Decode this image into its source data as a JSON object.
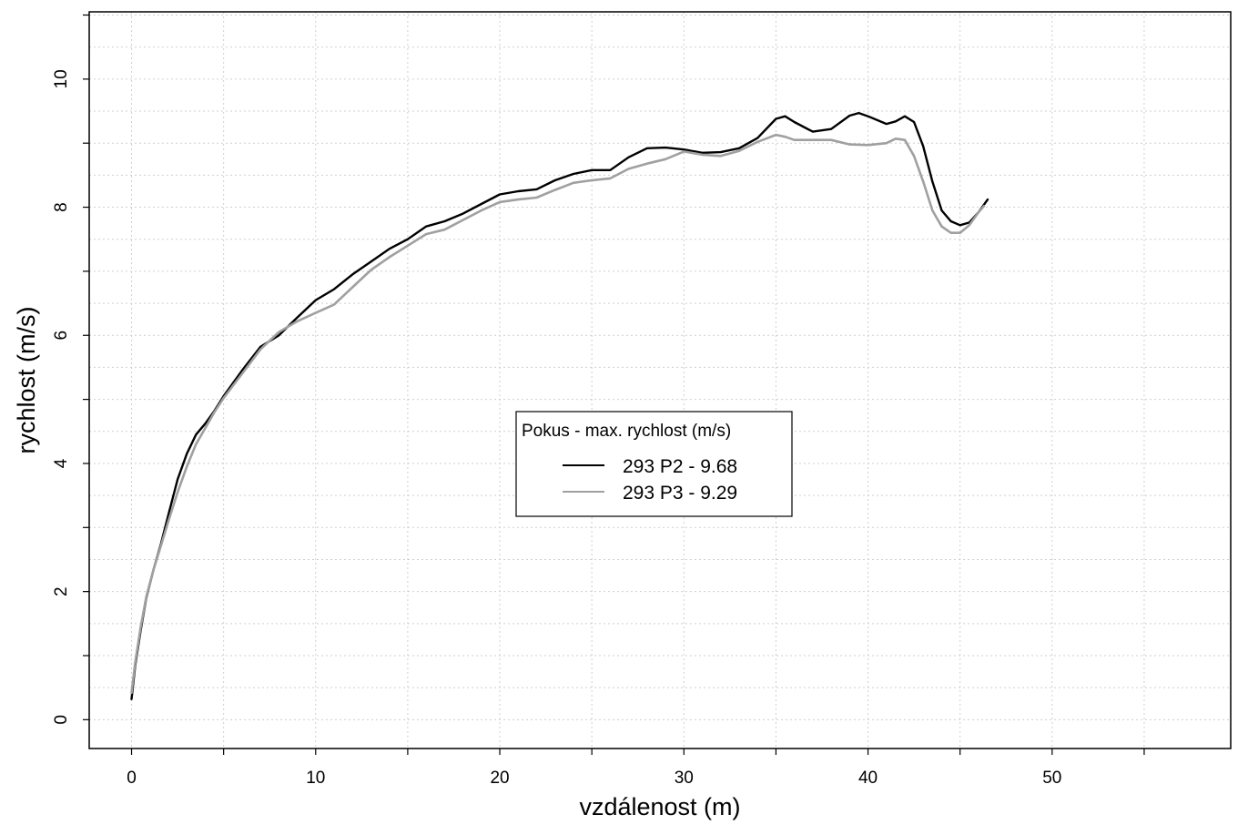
{
  "chart_data": {
    "type": "line",
    "xlabel": "vzdálenost (m)",
    "ylabel": "rychlost (m/s)",
    "xlim": [
      -2.3,
      59.7
    ],
    "ylim": [
      -0.45,
      11.05
    ],
    "x_ticks": [
      0,
      10,
      20,
      30,
      40,
      50
    ],
    "y_ticks": [
      0,
      2,
      4,
      6,
      8,
      10
    ],
    "x_tick_labels": [
      "0",
      "10",
      "20",
      "30",
      "40",
      "50"
    ],
    "y_tick_labels": [
      "0",
      "2",
      "4",
      "6",
      "8",
      "10"
    ],
    "grid": true,
    "legend": {
      "title": "Pokus - max. rychlost (m/s)",
      "placement": "center"
    },
    "series": [
      {
        "name": "293 P2 - 9.68",
        "color": "#000000",
        "points": [
          [
            0.0,
            0.32
          ],
          [
            0.2,
            0.85
          ],
          [
            0.5,
            1.4
          ],
          [
            0.8,
            1.9
          ],
          [
            1.2,
            2.35
          ],
          [
            1.6,
            2.75
          ],
          [
            2.0,
            3.2
          ],
          [
            2.5,
            3.75
          ],
          [
            3.0,
            4.15
          ],
          [
            3.5,
            4.45
          ],
          [
            4.0,
            4.62
          ],
          [
            4.5,
            4.82
          ],
          [
            5.0,
            5.05
          ],
          [
            6.0,
            5.45
          ],
          [
            7.0,
            5.82
          ],
          [
            8.0,
            6.0
          ],
          [
            9.0,
            6.28
          ],
          [
            10.0,
            6.55
          ],
          [
            11.0,
            6.72
          ],
          [
            12.0,
            6.95
          ],
          [
            13.0,
            7.15
          ],
          [
            14.0,
            7.35
          ],
          [
            15.0,
            7.5
          ],
          [
            16.0,
            7.7
          ],
          [
            17.0,
            7.78
          ],
          [
            18.0,
            7.9
          ],
          [
            19.0,
            8.05
          ],
          [
            20.0,
            8.2
          ],
          [
            21.0,
            8.25
          ],
          [
            22.0,
            8.28
          ],
          [
            23.0,
            8.42
          ],
          [
            24.0,
            8.52
          ],
          [
            25.0,
            8.58
          ],
          [
            26.0,
            8.58
          ],
          [
            27.0,
            8.78
          ],
          [
            28.0,
            8.92
          ],
          [
            29.0,
            8.93
          ],
          [
            30.0,
            8.9
          ],
          [
            31.0,
            8.85
          ],
          [
            32.0,
            8.86
          ],
          [
            33.0,
            8.92
          ],
          [
            34.0,
            9.08
          ],
          [
            35.0,
            9.38
          ],
          [
            35.5,
            9.42
          ],
          [
            36.0,
            9.33
          ],
          [
            37.0,
            9.18
          ],
          [
            38.0,
            9.22
          ],
          [
            39.0,
            9.43
          ],
          [
            39.5,
            9.47
          ],
          [
            40.0,
            9.42
          ],
          [
            41.0,
            9.3
          ],
          [
            41.5,
            9.34
          ],
          [
            42.0,
            9.42
          ],
          [
            42.5,
            9.33
          ],
          [
            43.0,
            8.95
          ],
          [
            43.5,
            8.4
          ],
          [
            44.0,
            7.95
          ],
          [
            44.5,
            7.78
          ],
          [
            45.0,
            7.72
          ],
          [
            45.5,
            7.76
          ],
          [
            46.0,
            7.92
          ],
          [
            46.5,
            8.12
          ]
        ]
      },
      {
        "name": "293 P3 - 9.29",
        "color": "#a0a0a0",
        "points": [
          [
            0.0,
            0.42
          ],
          [
            0.2,
            0.9
          ],
          [
            0.5,
            1.45
          ],
          [
            0.8,
            1.92
          ],
          [
            1.2,
            2.35
          ],
          [
            1.6,
            2.72
          ],
          [
            2.0,
            3.1
          ],
          [
            2.5,
            3.55
          ],
          [
            3.0,
            3.95
          ],
          [
            3.5,
            4.3
          ],
          [
            4.0,
            4.55
          ],
          [
            4.5,
            4.8
          ],
          [
            5.0,
            5.02
          ],
          [
            6.0,
            5.4
          ],
          [
            7.0,
            5.78
          ],
          [
            8.0,
            6.05
          ],
          [
            9.0,
            6.22
          ],
          [
            10.0,
            6.35
          ],
          [
            11.0,
            6.48
          ],
          [
            12.0,
            6.75
          ],
          [
            13.0,
            7.02
          ],
          [
            14.0,
            7.22
          ],
          [
            15.0,
            7.4
          ],
          [
            16.0,
            7.58
          ],
          [
            17.0,
            7.65
          ],
          [
            18.0,
            7.8
          ],
          [
            19.0,
            7.95
          ],
          [
            20.0,
            8.08
          ],
          [
            21.0,
            8.12
          ],
          [
            22.0,
            8.15
          ],
          [
            23.0,
            8.27
          ],
          [
            24.0,
            8.38
          ],
          [
            25.0,
            8.42
          ],
          [
            26.0,
            8.45
          ],
          [
            27.0,
            8.6
          ],
          [
            28.0,
            8.68
          ],
          [
            29.0,
            8.75
          ],
          [
            30.0,
            8.87
          ],
          [
            31.0,
            8.82
          ],
          [
            32.0,
            8.8
          ],
          [
            33.0,
            8.88
          ],
          [
            34.0,
            9.02
          ],
          [
            35.0,
            9.13
          ],
          [
            35.5,
            9.1
          ],
          [
            36.0,
            9.05
          ],
          [
            37.0,
            9.05
          ],
          [
            38.0,
            9.05
          ],
          [
            39.0,
            8.98
          ],
          [
            40.0,
            8.97
          ],
          [
            41.0,
            9.0
          ],
          [
            41.5,
            9.07
          ],
          [
            42.0,
            9.05
          ],
          [
            42.5,
            8.8
          ],
          [
            43.0,
            8.4
          ],
          [
            43.5,
            7.95
          ],
          [
            44.0,
            7.7
          ],
          [
            44.5,
            7.6
          ],
          [
            45.0,
            7.6
          ],
          [
            45.5,
            7.72
          ],
          [
            46.0,
            7.92
          ],
          [
            46.3,
            8.02
          ]
        ]
      }
    ]
  }
}
